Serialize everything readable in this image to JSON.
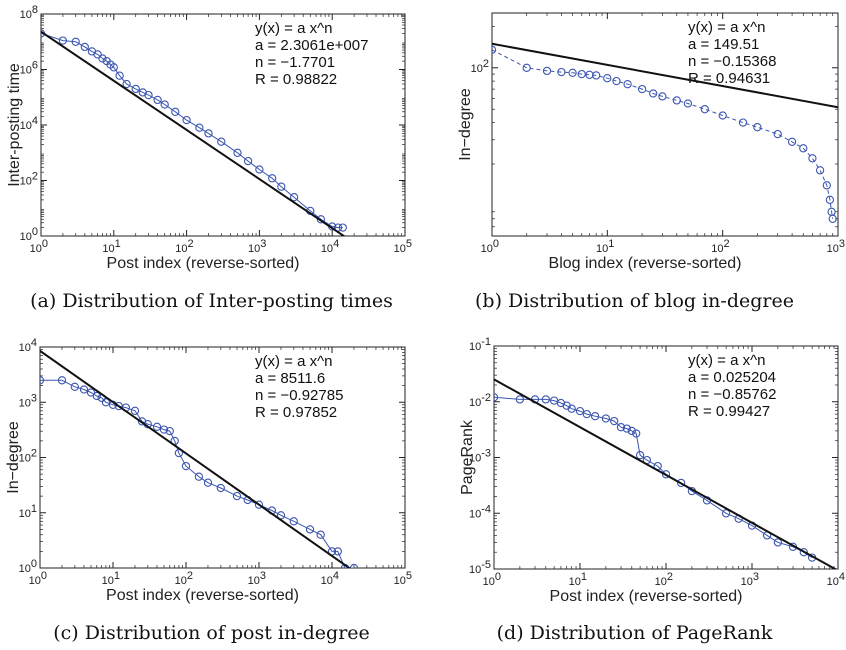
{
  "colors": {
    "marker": "#3b55b0",
    "fit_line": "#111111",
    "axes": "#222222"
  },
  "chart_data": [
    {
      "type": "scatter",
      "panel_label": "(a) Distribution of Inter-posting times",
      "xlabel": "Post index (reverse-sorted)",
      "ylabel": "Inter-posting time",
      "xscale": "log",
      "yscale": "log",
      "xlim": [
        1,
        100000
      ],
      "ylim": [
        1,
        100000000
      ],
      "xticks": [
        1,
        10,
        100,
        1000,
        10000,
        100000
      ],
      "yticks": [
        1,
        100,
        10000,
        1000000,
        100000000
      ],
      "annotation": [
        "y(x) = a x^n",
        "a = 2.3061e+007",
        "n = −1.7701",
        "R = 0.98822"
      ],
      "legend_position": "top-right",
      "fit": {
        "a": 23061000,
        "n": -1.7701
      },
      "series": [
        {
          "marker": "circle",
          "connected": true,
          "x": [
            1,
            2,
            3,
            4,
            5,
            6,
            7,
            8,
            9,
            10,
            12,
            15,
            20,
            25,
            30,
            40,
            50,
            70,
            100,
            150,
            200,
            300,
            500,
            700,
            1000,
            1500,
            2000,
            3000,
            5000,
            7000,
            10000,
            12000,
            14000
          ],
          "y": [
            20000000,
            11000000,
            10000000,
            6500000,
            4500000,
            3500000,
            2500000,
            2000000,
            1500000,
            1200000,
            600000,
            300000,
            200000,
            150000,
            120000,
            80000,
            55000,
            30000,
            15000,
            8000,
            5000,
            2500,
            1000,
            500,
            250,
            120,
            60,
            25,
            8,
            4,
            2.2,
            2,
            2
          ]
        }
      ]
    },
    {
      "type": "scatter",
      "panel_label": "(b) Distribution of blog in-degree",
      "xlabel": "Blog index (reverse-sorted)",
      "ylabel": "In−degree",
      "xscale": "log",
      "yscale": "log",
      "xlim": [
        1,
        1000
      ],
      "ylim": [
        6,
        250
      ],
      "xticks": [
        1,
        10,
        100,
        1000
      ],
      "yticks": [
        100
      ],
      "annotation": [
        "y(x) = a x^n",
        "a = 149.51",
        "n = −0.15368",
        "R = 0.94631"
      ],
      "legend_position": "top-right",
      "fit": {
        "a": 149.51,
        "n": -0.15368
      },
      "series": [
        {
          "marker": "circle",
          "connected": true,
          "x": [
            1,
            2,
            3,
            4,
            5,
            6,
            7,
            8,
            10,
            12,
            15,
            20,
            25,
            30,
            40,
            50,
            70,
            100,
            150,
            200,
            300,
            400,
            500,
            600,
            700,
            800,
            850,
            880,
            900
          ],
          "y": [
            135,
            100,
            95,
            93,
            92,
            90,
            89,
            88,
            84,
            80,
            76,
            70,
            65,
            62,
            58,
            55,
            50,
            45,
            40,
            37,
            33,
            29,
            26,
            22,
            18,
            14,
            11,
            9,
            8
          ]
        }
      ]
    },
    {
      "type": "scatter",
      "panel_label": "(c) Distribution of post in-degree",
      "xlabel": "Post index (reverse-sorted)",
      "ylabel": "In−degree",
      "xscale": "log",
      "yscale": "log",
      "xlim": [
        1,
        100000
      ],
      "ylim": [
        1,
        10000
      ],
      "xticks": [
        1,
        10,
        100,
        1000,
        10000,
        100000
      ],
      "yticks": [
        1,
        10,
        100,
        1000,
        10000
      ],
      "annotation": [
        "y(x) = a x^n",
        "a = 8511.6",
        "n = −0.92785",
        "R = 0.97852"
      ],
      "legend_position": "top-right",
      "fit": {
        "a": 8511.6,
        "n": -0.92785
      },
      "series": [
        {
          "marker": "circle",
          "connected": true,
          "x": [
            1,
            2,
            3,
            4,
            5,
            6,
            7,
            8,
            10,
            12,
            15,
            20,
            25,
            30,
            40,
            50,
            60,
            70,
            80,
            100,
            150,
            200,
            300,
            500,
            700,
            1000,
            1500,
            2000,
            3000,
            5000,
            7000,
            10000,
            12000,
            15000,
            20000
          ],
          "y": [
            2500,
            2500,
            1900,
            1700,
            1500,
            1300,
            1200,
            1000,
            900,
            850,
            800,
            700,
            450,
            400,
            360,
            320,
            300,
            200,
            120,
            70,
            45,
            35,
            28,
            20,
            17,
            14,
            11,
            9,
            7,
            5,
            4,
            2,
            2,
            1,
            1
          ]
        }
      ]
    },
    {
      "type": "scatter",
      "panel_label": "(d) Distribution of PageRank",
      "xlabel": "Post index (reverse-sorted)",
      "ylabel": "PageRank",
      "xscale": "log",
      "yscale": "log",
      "xlim": [
        1,
        10000
      ],
      "ylim": [
        1e-05,
        0.1
      ],
      "xticks": [
        1,
        10,
        100,
        1000,
        10000
      ],
      "yticks": [
        1e-05,
        0.0001,
        0.001,
        0.01,
        0.1
      ],
      "annotation": [
        "y(x) = a x^n",
        "a = 0.025204",
        "n = −0.85762",
        "R = 0.99427"
      ],
      "legend_position": "top-right",
      "fit": {
        "a": 0.025204,
        "n": -0.85762
      },
      "series": [
        {
          "marker": "circle",
          "connected": true,
          "x": [
            1,
            2,
            3,
            4,
            5,
            6,
            7,
            8,
            10,
            12,
            15,
            20,
            25,
            30,
            35,
            40,
            45,
            50,
            60,
            80,
            100,
            150,
            200,
            300,
            500,
            700,
            1000,
            1500,
            2000,
            3000,
            4000,
            5000
          ],
          "y": [
            0.012,
            0.011,
            0.011,
            0.011,
            0.0105,
            0.0095,
            0.0085,
            0.0075,
            0.0068,
            0.006,
            0.0055,
            0.005,
            0.0045,
            0.0035,
            0.0033,
            0.003,
            0.0027,
            0.0011,
            0.0009,
            0.0007,
            0.0005,
            0.00035,
            0.00025,
            0.00017,
            0.0001,
            8e-05,
            6e-05,
            4e-05,
            3e-05,
            2.5e-05,
            2e-05,
            1.6e-05
          ]
        }
      ]
    }
  ]
}
